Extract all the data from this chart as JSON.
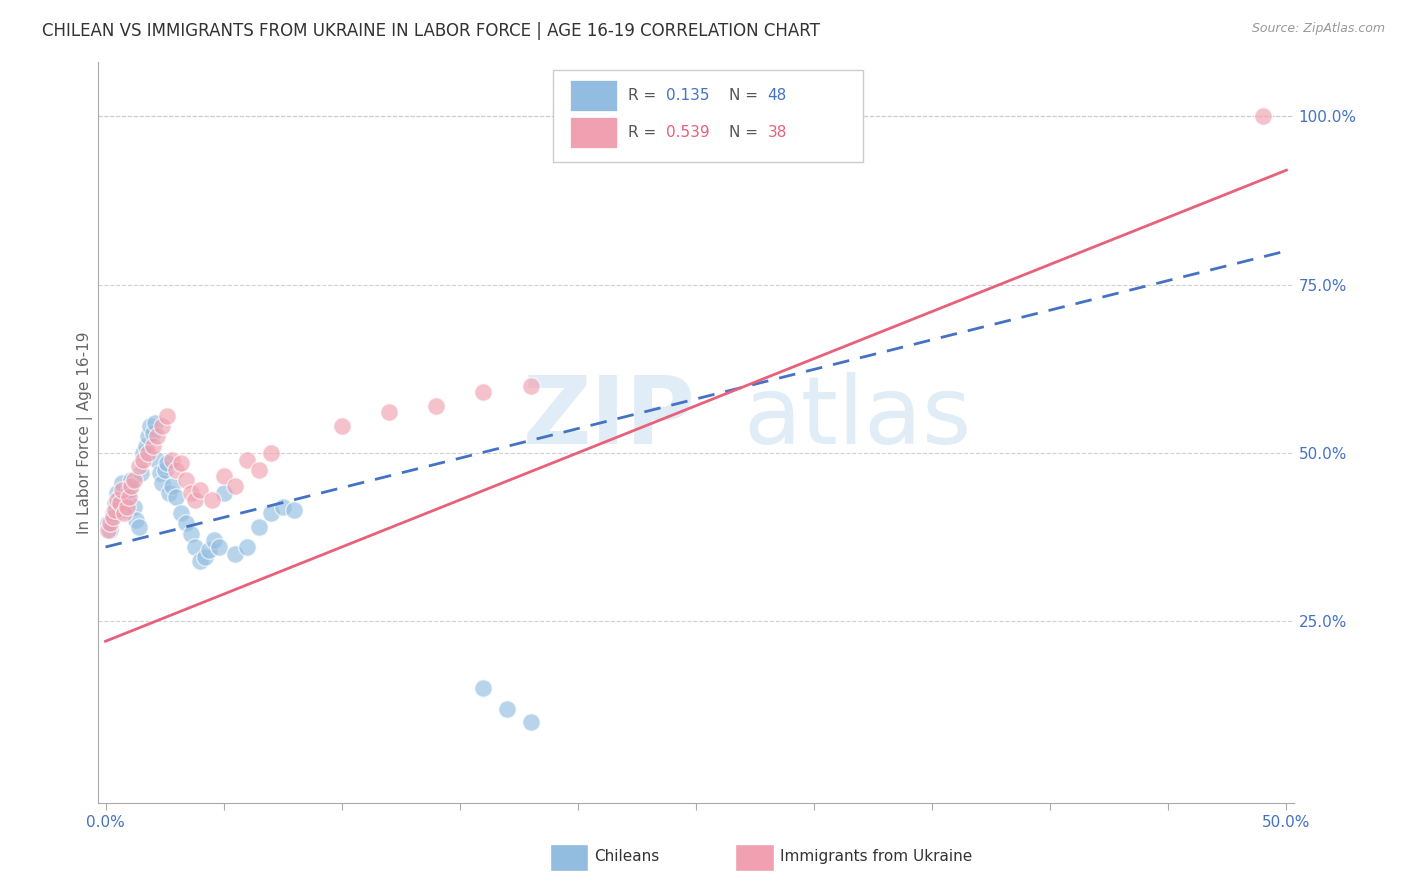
{
  "title": "CHILEAN VS IMMIGRANTS FROM UKRAINE IN LABOR FORCE | AGE 16-19 CORRELATION CHART",
  "source": "Source: ZipAtlas.com",
  "ylabel": "In Labor Force | Age 16-19",
  "x_tick_labels": [
    "0.0%",
    "",
    "",
    "",
    "",
    "",
    "",
    "",
    "",
    "",
    "50.0%"
  ],
  "x_tick_vals": [
    0,
    0.05,
    0.1,
    0.15,
    0.2,
    0.25,
    0.3,
    0.35,
    0.4,
    0.45,
    0.5
  ],
  "y_tick_labels": [
    "25.0%",
    "50.0%",
    "75.0%",
    "100.0%"
  ],
  "y_tick_vals": [
    0.25,
    0.5,
    0.75,
    1.0
  ],
  "xlim": [
    -0.003,
    0.503
  ],
  "ylim": [
    -0.02,
    1.08
  ],
  "chilean_R": "0.135",
  "chilean_N": "48",
  "ukraine_R": "0.539",
  "ukraine_N": "38",
  "chilean_color": "#92bde0",
  "ukraine_color": "#f0a0b0",
  "trend_chilean_color": "#4472c4",
  "trend_ukraine_color": "#e8607a",
  "watermark_zip": "ZIP",
  "watermark_atlas": "atlas",
  "legend_R_color": "#4472c4",
  "legend_pink_color": "#e8607a",
  "chilean_x": [
    0.001,
    0.002,
    0.003,
    0.004,
    0.005,
    0.006,
    0.007,
    0.008,
    0.009,
    0.01,
    0.011,
    0.012,
    0.013,
    0.014,
    0.015,
    0.016,
    0.017,
    0.018,
    0.019,
    0.02,
    0.021,
    0.022,
    0.023,
    0.024,
    0.025,
    0.026,
    0.027,
    0.028,
    0.03,
    0.032,
    0.034,
    0.036,
    0.038,
    0.04,
    0.042,
    0.044,
    0.046,
    0.048,
    0.05,
    0.055,
    0.06,
    0.065,
    0.07,
    0.075,
    0.08,
    0.16,
    0.17,
    0.18
  ],
  "chilean_y": [
    0.395,
    0.385,
    0.41,
    0.425,
    0.44,
    0.435,
    0.455,
    0.415,
    0.43,
    0.445,
    0.46,
    0.42,
    0.4,
    0.39,
    0.47,
    0.5,
    0.51,
    0.525,
    0.54,
    0.53,
    0.545,
    0.49,
    0.47,
    0.455,
    0.475,
    0.485,
    0.44,
    0.45,
    0.435,
    0.41,
    0.395,
    0.38,
    0.36,
    0.34,
    0.345,
    0.355,
    0.37,
    0.36,
    0.44,
    0.35,
    0.36,
    0.39,
    0.41,
    0.42,
    0.415,
    0.15,
    0.12,
    0.1
  ],
  "ukraine_x": [
    0.001,
    0.002,
    0.003,
    0.004,
    0.005,
    0.006,
    0.007,
    0.008,
    0.009,
    0.01,
    0.011,
    0.012,
    0.014,
    0.016,
    0.018,
    0.02,
    0.022,
    0.024,
    0.026,
    0.028,
    0.03,
    0.032,
    0.034,
    0.036,
    0.038,
    0.04,
    0.045,
    0.05,
    0.055,
    0.06,
    0.065,
    0.07,
    0.1,
    0.12,
    0.14,
    0.16,
    0.18,
    0.49
  ],
  "ukraine_y": [
    0.385,
    0.395,
    0.405,
    0.415,
    0.43,
    0.425,
    0.445,
    0.41,
    0.42,
    0.435,
    0.45,
    0.46,
    0.48,
    0.49,
    0.5,
    0.51,
    0.525,
    0.54,
    0.555,
    0.49,
    0.475,
    0.485,
    0.46,
    0.44,
    0.43,
    0.445,
    0.43,
    0.465,
    0.45,
    0.49,
    0.475,
    0.5,
    0.54,
    0.56,
    0.57,
    0.59,
    0.6,
    1.0
  ]
}
